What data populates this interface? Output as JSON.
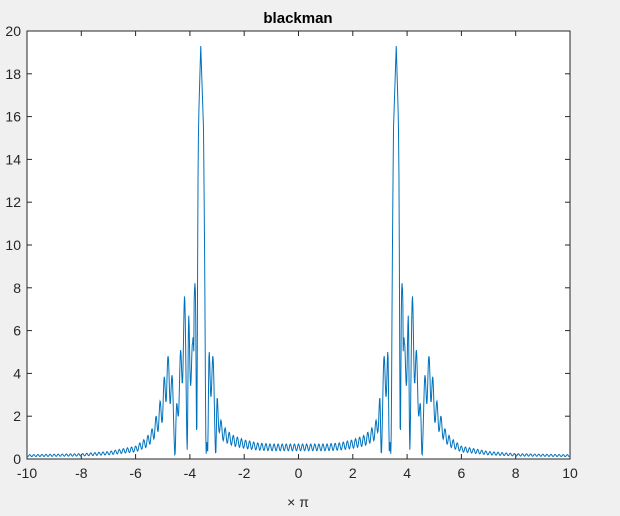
{
  "chart_data": {
    "type": "line",
    "title": "blackman",
    "xlabel": "× π",
    "ylabel": "",
    "xlim": [
      -10,
      10
    ],
    "ylim": [
      0,
      20
    ],
    "xticks": [
      -10,
      -8,
      -6,
      -4,
      -2,
      0,
      2,
      4,
      6,
      8,
      10
    ],
    "yticks": [
      0,
      2,
      4,
      6,
      8,
      10,
      12,
      14,
      16,
      18,
      20
    ],
    "grid": false,
    "line_color": "#0072bd",
    "envelope": {
      "x": [
        -10,
        -8,
        -7,
        -6,
        -5.6,
        -5.4,
        -5.2,
        -5.0,
        -4.9,
        -4.85,
        -4.8,
        -4.7,
        -4.6,
        -4.5,
        -4.4,
        -4.3,
        -4.2,
        -4.1,
        -4.0,
        -3.9,
        -3.8,
        -3.7,
        -3.6,
        -3.5,
        -3.45,
        -3.4,
        -3.3,
        -3.2,
        -3.1,
        -3.0,
        -2.9,
        -2.8,
        -2.6,
        -2.4,
        -2.0,
        -1.5,
        -1.0,
        -0.5,
        0
      ],
      "y": [
        0.2,
        0.25,
        0.35,
        0.6,
        1.0,
        1.4,
        2.2,
        3.2,
        4.4,
        5.3,
        4.8,
        4.6,
        3.1,
        2.6,
        4.0,
        6.0,
        7.6,
        8.2,
        6.5,
        5.4,
        9.0,
        15.0,
        19.3,
        15.5,
        9.0,
        3.5,
        5.4,
        5.2,
        4.4,
        3.2,
        2.0,
        1.6,
        1.3,
        1.1,
        0.9,
        0.75,
        0.7,
        0.7,
        0.7
      ]
    },
    "dips": [
      -4.55,
      -4.1,
      -3.75,
      -3.4,
      -3.35,
      -3.05
    ],
    "oscillation_period": 0.15
  }
}
